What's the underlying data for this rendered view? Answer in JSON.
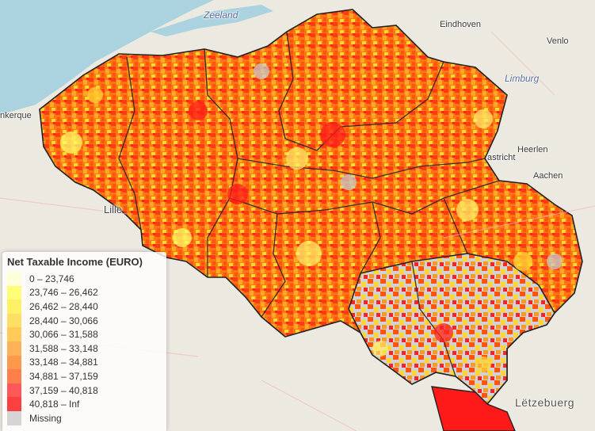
{
  "map": {
    "place_labels": {
      "zeeland": "Zeeland",
      "eindhoven": "Eindhoven",
      "venlo": "Venlo",
      "limburg": "Limburg",
      "heerlen": "Heerlen",
      "maastricht": "astricht",
      "aachen": "Aachen",
      "lille": "Lille",
      "dunkerque": "nkerque",
      "letzebuerg": "Lëtzebuerg"
    }
  },
  "legend": {
    "title": "Net Taxable Income (EURO)",
    "classes": [
      {
        "label": "0 – 23,746",
        "color": "#ffffcc"
      },
      {
        "label": "23,746 – 26,462",
        "color": "#ffff4d"
      },
      {
        "label": "26,462 – 28,440",
        "color": "#ffee33"
      },
      {
        "label": "28,440 – 30,066",
        "color": "#ffd633"
      },
      {
        "label": "30,066 – 31,588",
        "color": "#ffbb22"
      },
      {
        "label": "31,588 – 33,148",
        "color": "#ff9922"
      },
      {
        "label": "33,148 – 34,881",
        "color": "#ff7711"
      },
      {
        "label": "34,881 – 37,159",
        "color": "#ff5511"
      },
      {
        "label": "37,159 – 40,818",
        "color": "#ff2222"
      },
      {
        "label": "40,818 – Inf",
        "color": "#ff0000"
      },
      {
        "label": "Missing",
        "color": "#c8c8c8"
      }
    ]
  }
}
